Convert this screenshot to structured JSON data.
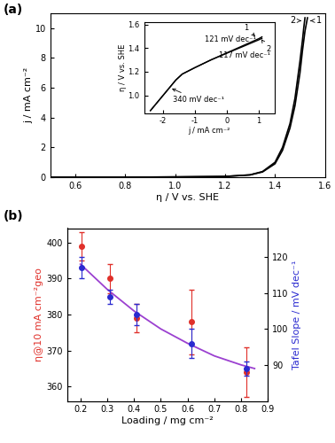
{
  "chart_data": [
    {
      "type": "line",
      "label": "(a)",
      "x_label": "η / V vs. SHE",
      "y_label": "j / mA cm⁻²",
      "xlim": [
        0.5,
        1.6
      ],
      "xticks": [
        0.6,
        0.8,
        1.0,
        1.2,
        1.4,
        1.6
      ],
      "ylim": [
        0,
        11
      ],
      "yticks": [
        0,
        2,
        4,
        6,
        8,
        10
      ],
      "series": [
        {
          "color": "#000000",
          "x": [
            0.5,
            0.8,
            1.0,
            1.2,
            1.3,
            1.35,
            1.4,
            1.43,
            1.46,
            1.48,
            1.5,
            1.51,
            1.52,
            1.53
          ],
          "values": [
            0,
            0,
            0.02,
            0.05,
            0.15,
            0.35,
            0.9,
            1.8,
            3.3,
            4.8,
            7.0,
            8.5,
            9.8,
            10.7
          ]
        },
        {
          "color": "#000000",
          "x": [
            0.5,
            0.8,
            1.0,
            1.2,
            1.3,
            1.35,
            1.4,
            1.43,
            1.46,
            1.48,
            1.5,
            1.51,
            1.515,
            1.52
          ],
          "values": [
            0,
            0,
            0.02,
            0.05,
            0.16,
            0.38,
            1.0,
            2.0,
            3.6,
            5.3,
            7.8,
            9.2,
            10.0,
            10.7
          ]
        }
      ],
      "annotations": [
        {
          "text": "2",
          "x": 1.47,
          "y": 10.5,
          "target": [
            1.515,
            10.5
          ]
        },
        {
          "text": "1",
          "x": 1.575,
          "y": 10.5,
          "target": [
            1.532,
            10.5
          ]
        }
      ]
    },
    {
      "type": "line",
      "x_label": "j / mA cm⁻²",
      "y_label": "η / V vs. SHE",
      "xlim": [
        -2.6,
        1.5
      ],
      "xticks": [
        -2,
        -1,
        0,
        1
      ],
      "ylim": [
        0.85,
        1.62
      ],
      "yticks": [
        1.0,
        1.2,
        1.4,
        1.6
      ],
      "series": [
        {
          "color": "#000000",
          "x": [
            -2.4,
            -2.0,
            -1.6,
            -1.4,
            -1.0,
            -0.5,
            0,
            0.5,
            1.0,
            1.1
          ],
          "values": [
            0.87,
            1.0,
            1.13,
            1.18,
            1.235,
            1.3,
            1.36,
            1.42,
            1.48,
            1.495
          ]
        },
        {
          "color": "#000000",
          "x": [
            -2.4,
            -2.0,
            -1.6,
            -1.4,
            -1.0,
            -0.5,
            0,
            0.5,
            1.0,
            1.1
          ],
          "values": [
            0.87,
            1.0,
            1.13,
            1.18,
            1.235,
            1.3,
            1.357,
            1.413,
            1.47,
            1.483
          ]
        }
      ],
      "annotations": [
        {
          "text": "1",
          "x": 0.6,
          "y": 1.57,
          "target": [
            0.95,
            1.485
          ]
        },
        {
          "text": "2",
          "x": 1.3,
          "y": 1.39,
          "target": [
            1.08,
            1.475
          ]
        },
        {
          "text": "121 mV dec⁻¹",
          "x": 0.1,
          "y": 1.47
        },
        {
          "text": "117 mV dec⁻¹",
          "x": 0.55,
          "y": 1.34
        },
        {
          "text": "340 mV dec⁻¹",
          "x": -0.9,
          "y": 0.96,
          "target": [
            -1.8,
            1.065
          ]
        }
      ]
    },
    {
      "type": "scatter",
      "label": "(b)",
      "x_label": "Loading / mg cm⁻²",
      "y_label": "η@10 mA cm⁻²geo",
      "y2_label": "Tafel Slope / mV dec⁻¹",
      "xlim": [
        0.15,
        0.9
      ],
      "xticks": [
        0.2,
        0.3,
        0.4,
        0.5,
        0.6,
        0.7,
        0.8,
        0.9
      ],
      "ylim": [
        356,
        404
      ],
      "yticks": [
        360,
        370,
        380,
        390,
        400
      ],
      "y2lim": [
        80,
        128
      ],
      "y2ticks": [
        90,
        100,
        110,
        120
      ],
      "series": [
        {
          "color": "#e0302a",
          "marker": "circle",
          "x": [
            0.205,
            0.31,
            0.41,
            0.615,
            0.82
          ],
          "values": [
            399,
            390,
            379,
            378,
            364
          ],
          "errors": [
            4,
            4,
            4,
            9,
            7
          ]
        },
        {
          "axis": "y2",
          "color": "#2a2ad0",
          "marker": "circle",
          "x": [
            0.205,
            0.31,
            0.41,
            0.615,
            0.82
          ],
          "values": [
            117,
            109,
            104,
            96,
            89
          ],
          "errors": [
            3,
            2,
            3,
            4,
            2
          ]
        },
        {
          "type": "line",
          "axis": "y2",
          "color": "#9b40d0",
          "x": [
            0.2,
            0.3,
            0.4,
            0.5,
            0.6,
            0.7,
            0.8,
            0.85
          ],
          "values": [
            118,
            111,
            105,
            100,
            96,
            92.5,
            90,
            89
          ]
        }
      ]
    }
  ]
}
